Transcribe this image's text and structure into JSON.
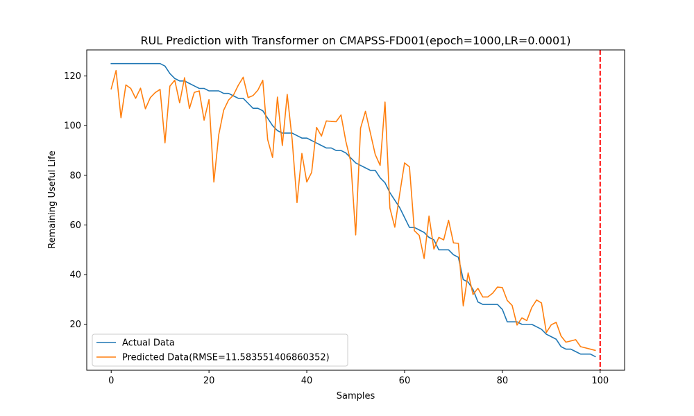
{
  "chart_data": {
    "type": "line",
    "title": "RUL Prediction with Transformer on CMAPSS-FD001(epoch=1000,LR=0.0001)",
    "xlabel": "Samples",
    "ylabel": "Remaining Useful Life",
    "xlim": [
      -5,
      105
    ],
    "ylim": [
      1.5,
      130.5
    ],
    "xticks": [
      0,
      20,
      40,
      60,
      80,
      100
    ],
    "yticks": [
      20,
      40,
      60,
      80,
      100,
      120
    ],
    "legend_position": "lower-left",
    "vline": {
      "x": 100,
      "color": "#ff0000",
      "style": "dashed"
    },
    "series": [
      {
        "name": "Actual Data",
        "color": "#1f77b4",
        "values": [
          125,
          125,
          125,
          125,
          125,
          125,
          125,
          125,
          125,
          125,
          125,
          124,
          121,
          119,
          118,
          118,
          117,
          116,
          115,
          115,
          114,
          114,
          114,
          113,
          113,
          112,
          111,
          111,
          109,
          107,
          107,
          106,
          103,
          100,
          98,
          97,
          97,
          97,
          96,
          95,
          95,
          94,
          93,
          92,
          91,
          91,
          90,
          90,
          89,
          87,
          85,
          84,
          83,
          82,
          82,
          79,
          77,
          73,
          70,
          67,
          63,
          59,
          59,
          58,
          57,
          55,
          54,
          50,
          50,
          50,
          48,
          47,
          38,
          37,
          34,
          29,
          28,
          28,
          28,
          28,
          26,
          21,
          21,
          21,
          20,
          20,
          20,
          19,
          18,
          16,
          15,
          14,
          11,
          10,
          10,
          9,
          8,
          8,
          8,
          7
        ]
      },
      {
        "name": "Predicted Data(RMSE=11.583551406860352)",
        "color": "#ff7f0e",
        "values": [
          114.8,
          122.2,
          103.2,
          116.4,
          115,
          111,
          115.1,
          106.8,
          111.3,
          113.3,
          114.6,
          93.1,
          115.9,
          118.3,
          109.2,
          119.3,
          106.9,
          113.4,
          114,
          102.2,
          110.5,
          77.3,
          96.4,
          106.2,
          110.3,
          112.3,
          116.3,
          119.5,
          111.3,
          112.1,
          114.3,
          118.3,
          94.4,
          87.2,
          111.5,
          92,
          112.6,
          94.6,
          69,
          88.8,
          77.3,
          81.2,
          99.3,
          95.8,
          101.9,
          101.7,
          101.6,
          104.3,
          93.6,
          85.5,
          56,
          99,
          105.8,
          97.1,
          88.4,
          84,
          109.5,
          66.8,
          59.1,
          72.5,
          85,
          83.4,
          57.7,
          55.8,
          46.5,
          63.6,
          50.3,
          55,
          54,
          61.9,
          52.8,
          52.6,
          27.4,
          40.7,
          32,
          34.5,
          31,
          31,
          32.5,
          35,
          34.8,
          29.6,
          27.6,
          19.7,
          22.6,
          21.5,
          26.7,
          29.8,
          28.6,
          16.7,
          19.8,
          20.8,
          15.3,
          12.8,
          13.3,
          13.8,
          11,
          10.5,
          10,
          9.5
        ]
      }
    ]
  }
}
